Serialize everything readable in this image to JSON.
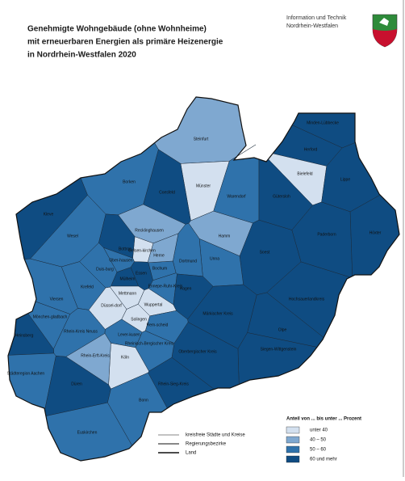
{
  "header": {
    "title_lines": [
      "Genehmigte Wohngebäude (ohne Wohnheime)",
      "mit erneuerbaren Energien als primäre Heizenergie",
      "in Nordrhein-Westfalen 2020"
    ],
    "org_lines": [
      "Information und Technik",
      "Nordrhein-Westfalen"
    ]
  },
  "legend": {
    "title": "Anteil von ... bis unter ... Prozent",
    "classes": [
      {
        "label": "unter 40",
        "color": "#d3e0ef"
      },
      {
        "label": "40 – 50",
        "color": "#7fa8d0"
      },
      {
        "label": "50 – 60",
        "color": "#2f72ab"
      },
      {
        "label": "60 und mehr",
        "color": "#0f4c82"
      }
    ],
    "lines": [
      "kreisfreie Städte und Kreise",
      "Regierungsbezirke",
      "Land"
    ]
  },
  "districts": [
    {
      "name": "Steinfurt",
      "class": 1
    },
    {
      "name": "Münster",
      "class": 0
    },
    {
      "name": "Warendorf",
      "class": 2
    },
    {
      "name": "Coesfeld",
      "class": 3
    },
    {
      "name": "Borken",
      "class": 2
    },
    {
      "name": "Kleve",
      "class": 3
    },
    {
      "name": "Wesel",
      "class": 2
    },
    {
      "name": "Recklinghausen",
      "class": 1
    },
    {
      "name": "Minden-Lübbecke",
      "class": 3
    },
    {
      "name": "Herford",
      "class": 3
    },
    {
      "name": "Bielefeld",
      "class": 0
    },
    {
      "name": "Lippe",
      "class": 3
    },
    {
      "name": "Gütersloh",
      "class": 3
    },
    {
      "name": "Paderborn",
      "class": 3
    },
    {
      "name": "Höxter",
      "class": 3
    },
    {
      "name": "Hamm",
      "class": 1
    },
    {
      "name": "Soest",
      "class": 3
    },
    {
      "name": "Unna",
      "class": 2
    },
    {
      "name": "Dortmund",
      "class": 2
    },
    {
      "name": "Bochum",
      "class": 2
    },
    {
      "name": "Gelsen-kirchen",
      "class": 0
    },
    {
      "name": "Bottrop",
      "class": 3
    },
    {
      "name": "Herne",
      "class": 1
    },
    {
      "name": "Ober-hausen",
      "class": 2
    },
    {
      "name": "Essen",
      "class": 3
    },
    {
      "name": "Duis-burg",
      "class": 2
    },
    {
      "name": "Mülheim",
      "class": 3
    },
    {
      "name": "Krefeld",
      "class": 2
    },
    {
      "name": "Düssel-dorf",
      "class": 0
    },
    {
      "name": "Mettmann",
      "class": 0
    },
    {
      "name": "Wuppertal",
      "class": 0
    },
    {
      "name": "Ennepe-Ruhr-Kreis",
      "class": 2
    },
    {
      "name": "Hagen",
      "class": 3
    },
    {
      "name": "Hochsauerlandkreis",
      "class": 3
    },
    {
      "name": "Märkischer Kreis",
      "class": 3
    },
    {
      "name": "Viersen",
      "class": 2
    },
    {
      "name": "Mönchen-gladbach",
      "class": 2
    },
    {
      "name": "Rhein-Kreis Neuss",
      "class": 2
    },
    {
      "name": "Solingen",
      "class": 0
    },
    {
      "name": "Rem-scheid",
      "class": 2
    },
    {
      "name": "Olpe",
      "class": 3
    },
    {
      "name": "Siegen-Wittgenstein",
      "class": 3
    },
    {
      "name": "Heinsberg",
      "class": 3
    },
    {
      "name": "Oberbergischer Kreis",
      "class": 3
    },
    {
      "name": "Rheinisch-Bergischer Kreis",
      "class": 2
    },
    {
      "name": "Lever-kusen",
      "class": 2
    },
    {
      "name": "Köln",
      "class": 0
    },
    {
      "name": "Rhein-Erft-Kreis",
      "class": 1
    },
    {
      "name": "Städteregion Aachen",
      "class": 2
    },
    {
      "name": "Düren",
      "class": 3
    },
    {
      "name": "Rhein-Sieg-Kreis",
      "class": 3
    },
    {
      "name": "Bonn",
      "class": 2
    },
    {
      "name": "Euskirchen",
      "class": 2
    }
  ]
}
